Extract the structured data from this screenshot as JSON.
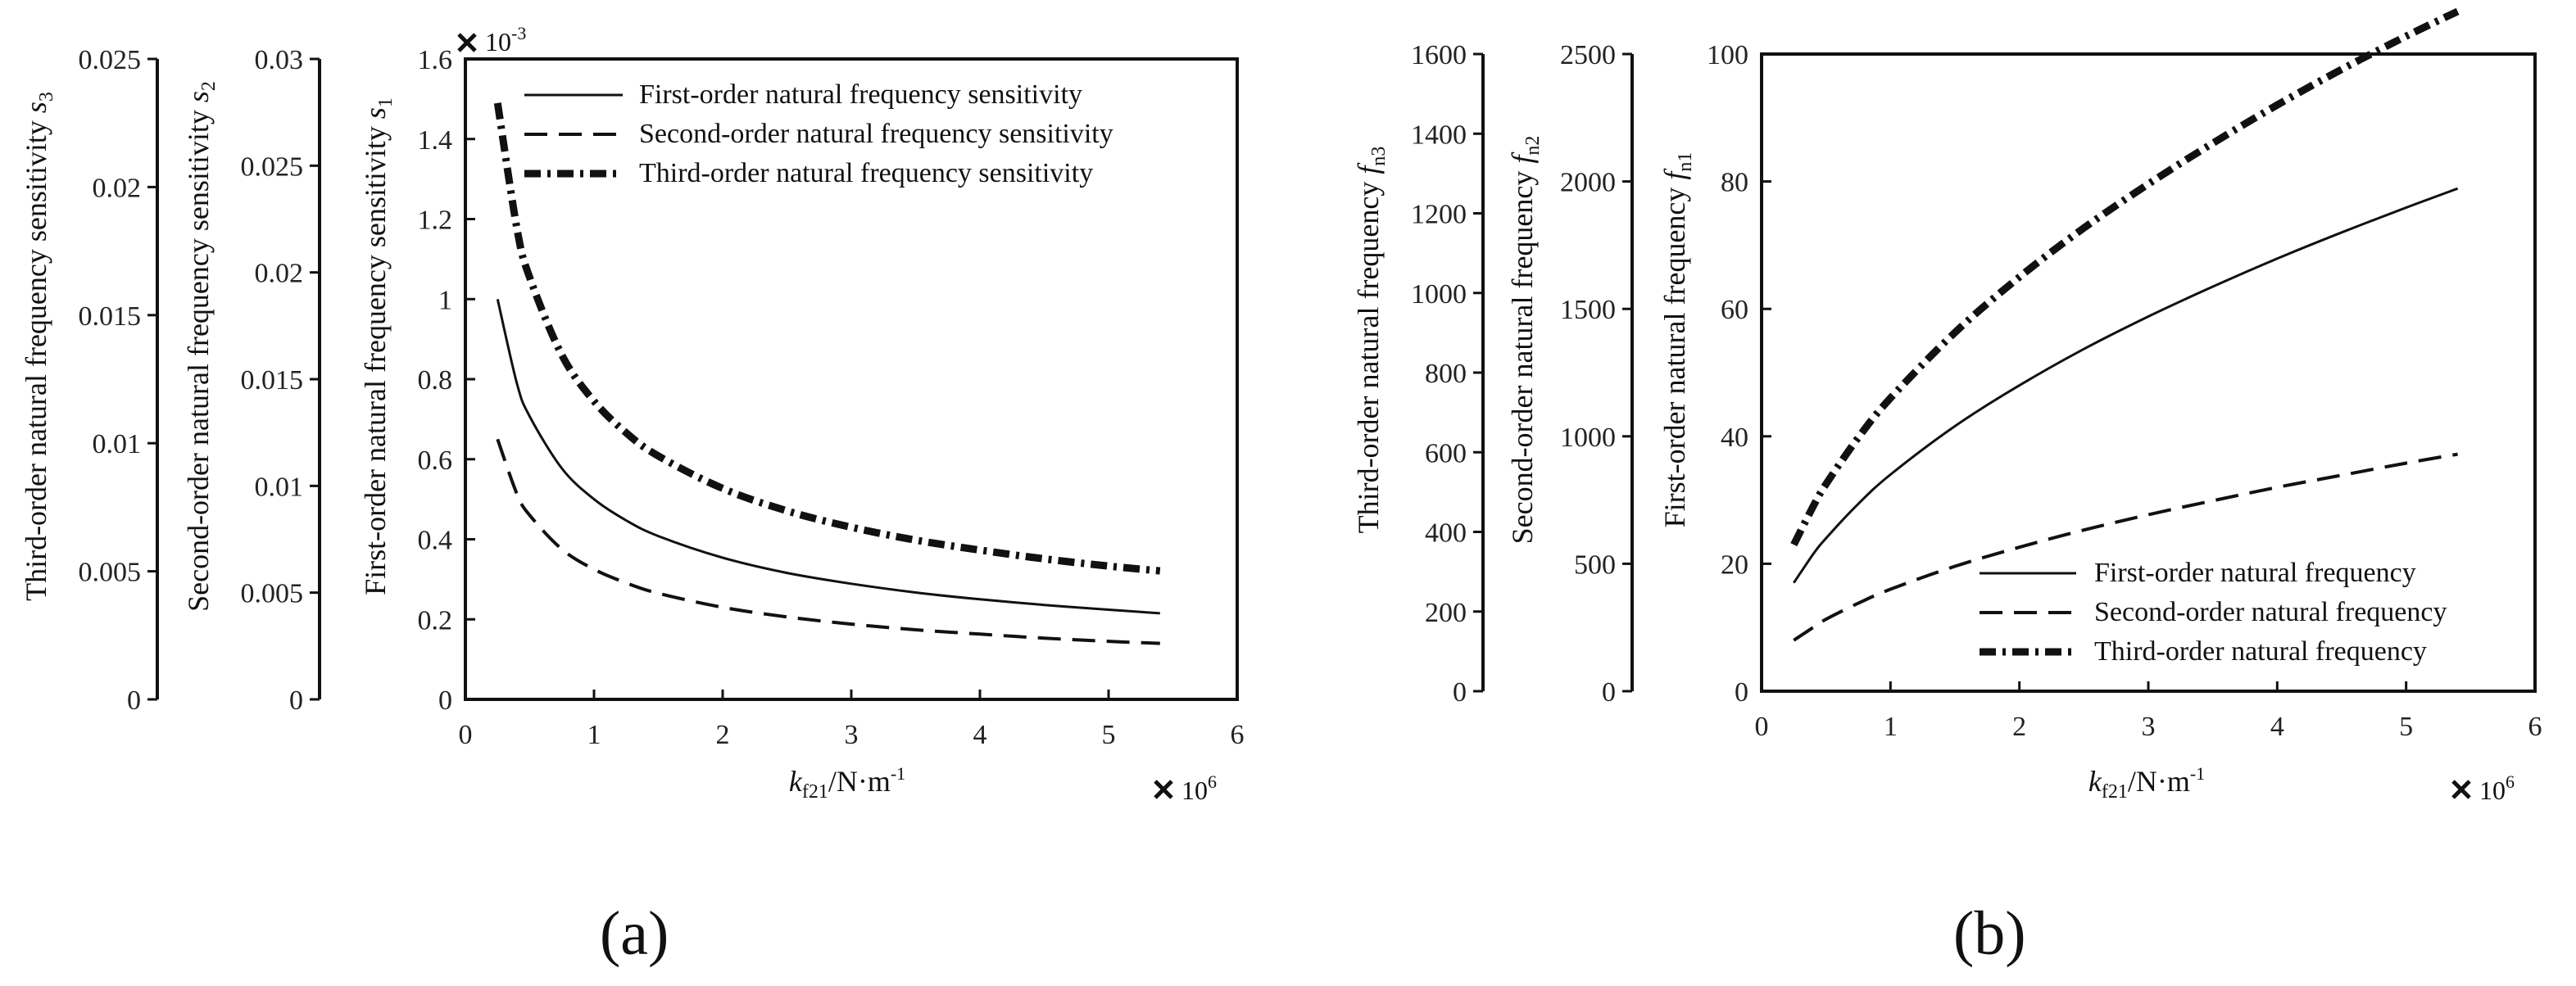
{
  "panels": {
    "a": "(a)",
    "b": "(b)"
  },
  "chart_data": [
    {
      "type": "line",
      "panel": "(a)",
      "xlabel": "k_f21/N·m⁻¹",
      "xlabel_main": "k",
      "xlabel_sub": "f21",
      "xlabel_unit": "/N·m",
      "xlabel_exp": "-1",
      "x_multiplier": "× 10",
      "x_multiplier_exp": "6",
      "xlim": [
        0,
        6
      ],
      "x_ticks": [
        "0",
        "1",
        "2",
        "3",
        "4",
        "5",
        "6"
      ],
      "axes": [
        {
          "label": "Third-order natural frequency sensitivity s3",
          "label_main": "Third-order natural frequency sensitivity ",
          "label_var": "s",
          "label_sub": "3",
          "ylim": [
            0,
            0.025
          ],
          "ticks": [
            "0",
            "0.005",
            "0.01",
            "0.015",
            "0.02",
            "0.025"
          ]
        },
        {
          "label": "Second-order natural frequency sensitivity s2",
          "label_main": "Second-order natural frequency sensitivity ",
          "label_var": "s",
          "label_sub": "2",
          "ylim": [
            0,
            0.03
          ],
          "ticks": [
            "0",
            "0.005",
            "0.01",
            "0.015",
            "0.02",
            "0.025",
            "0.03"
          ]
        },
        {
          "label": "First-order natural frequency sensitivity s1",
          "label_main": "First-order natural frequency sensitivity ",
          "label_var": "s",
          "label_sub": "1",
          "ylim": [
            0,
            1.6
          ],
          "ticks": [
            "0",
            "0.2",
            "0.4",
            "0.6",
            "0.8",
            "1",
            "1.2",
            "1.4",
            "1.6"
          ],
          "y_multiplier": "× 10",
          "y_multiplier_exp": "-3"
        }
      ],
      "x": [
        0.25,
        0.4,
        0.5,
        0.75,
        1,
        1.25,
        1.5,
        2,
        2.5,
        3,
        3.5,
        4,
        4.5,
        5,
        5.4
      ],
      "series": [
        {
          "name": "First-order natural frequency sensitivity",
          "style": "solid",
          "values": [
            1.0,
            0.79,
            0.707,
            0.577,
            0.5,
            0.447,
            0.408,
            0.354,
            0.316,
            0.289,
            0.267,
            0.25,
            0.236,
            0.224,
            0.215
          ]
        },
        {
          "name": "Second-order natural frequency sensitivity",
          "style": "dashed",
          "values": [
            0.65,
            0.514,
            0.46,
            0.375,
            0.325,
            0.291,
            0.265,
            0.23,
            0.206,
            0.188,
            0.174,
            0.163,
            0.153,
            0.145,
            0.14
          ]
        },
        {
          "name": "Third-order natural frequency sensitivity",
          "style": "dashdot",
          "values": [
            1.49,
            1.178,
            1.054,
            0.86,
            0.745,
            0.666,
            0.608,
            0.527,
            0.471,
            0.43,
            0.398,
            0.373,
            0.351,
            0.333,
            0.321
          ]
        }
      ]
    },
    {
      "type": "line",
      "panel": "(b)",
      "xlabel": "k_f21/N·m⁻¹",
      "xlabel_main": "k",
      "xlabel_sub": "f21",
      "xlabel_unit": "/N·m",
      "xlabel_exp": "-1",
      "x_multiplier": "× 10",
      "x_multiplier_exp": "6",
      "xlim": [
        0,
        6
      ],
      "x_ticks": [
        "0",
        "1",
        "2",
        "3",
        "4",
        "5",
        "6"
      ],
      "axes": [
        {
          "label": "Third-order natural frequency fn3",
          "label_main": "Third-order natural frequency ",
          "label_var": "f",
          "label_sub": "n3",
          "ylim": [
            0,
            1600
          ],
          "ticks": [
            "0",
            "200",
            "400",
            "600",
            "800",
            "1000",
            "1200",
            "1400",
            "1600"
          ]
        },
        {
          "label": "Second-order natural frequency fn2",
          "label_main": "Second-order natural frequency ",
          "label_var": "f",
          "label_sub": "n2",
          "ylim": [
            0,
            2500
          ],
          "ticks": [
            "0",
            "500",
            "1000",
            "1500",
            "2000",
            "2500"
          ]
        },
        {
          "label": "First-order natural frequency fn1",
          "label_main": "First-order natural frequency ",
          "label_var": "f",
          "label_sub": "n1",
          "ylim": [
            0,
            100
          ],
          "ticks": [
            "0",
            "20",
            "40",
            "60",
            "80",
            "100"
          ]
        }
      ],
      "x": [
        0.25,
        0.4,
        0.5,
        0.75,
        1,
        1.5,
        2,
        2.5,
        3,
        3.5,
        4,
        4.5,
        5,
        5.4
      ],
      "series": [
        {
          "name": "First-order natural frequency",
          "style": "solid",
          "values": [
            17,
            21.5,
            24,
            29.4,
            34,
            41.6,
            48,
            53.7,
            58.8,
            63.5,
            67.9,
            72,
            75.9,
            78.9
          ]
        },
        {
          "name": "Second-order natural frequency",
          "style": "dashed",
          "values": [
            8,
            10,
            11.3,
            13.8,
            16,
            19.6,
            22.6,
            25.3,
            27.7,
            29.9,
            32,
            33.9,
            35.8,
            37.2
          ]
        },
        {
          "name": "Third-order natural frequency",
          "style": "dashdot",
          "values": [
            23,
            29,
            32.5,
            39.8,
            46,
            56.3,
            65,
            72.7,
            79.6,
            86,
            92,
            97.6,
            102.8,
            106.7
          ]
        }
      ]
    }
  ]
}
